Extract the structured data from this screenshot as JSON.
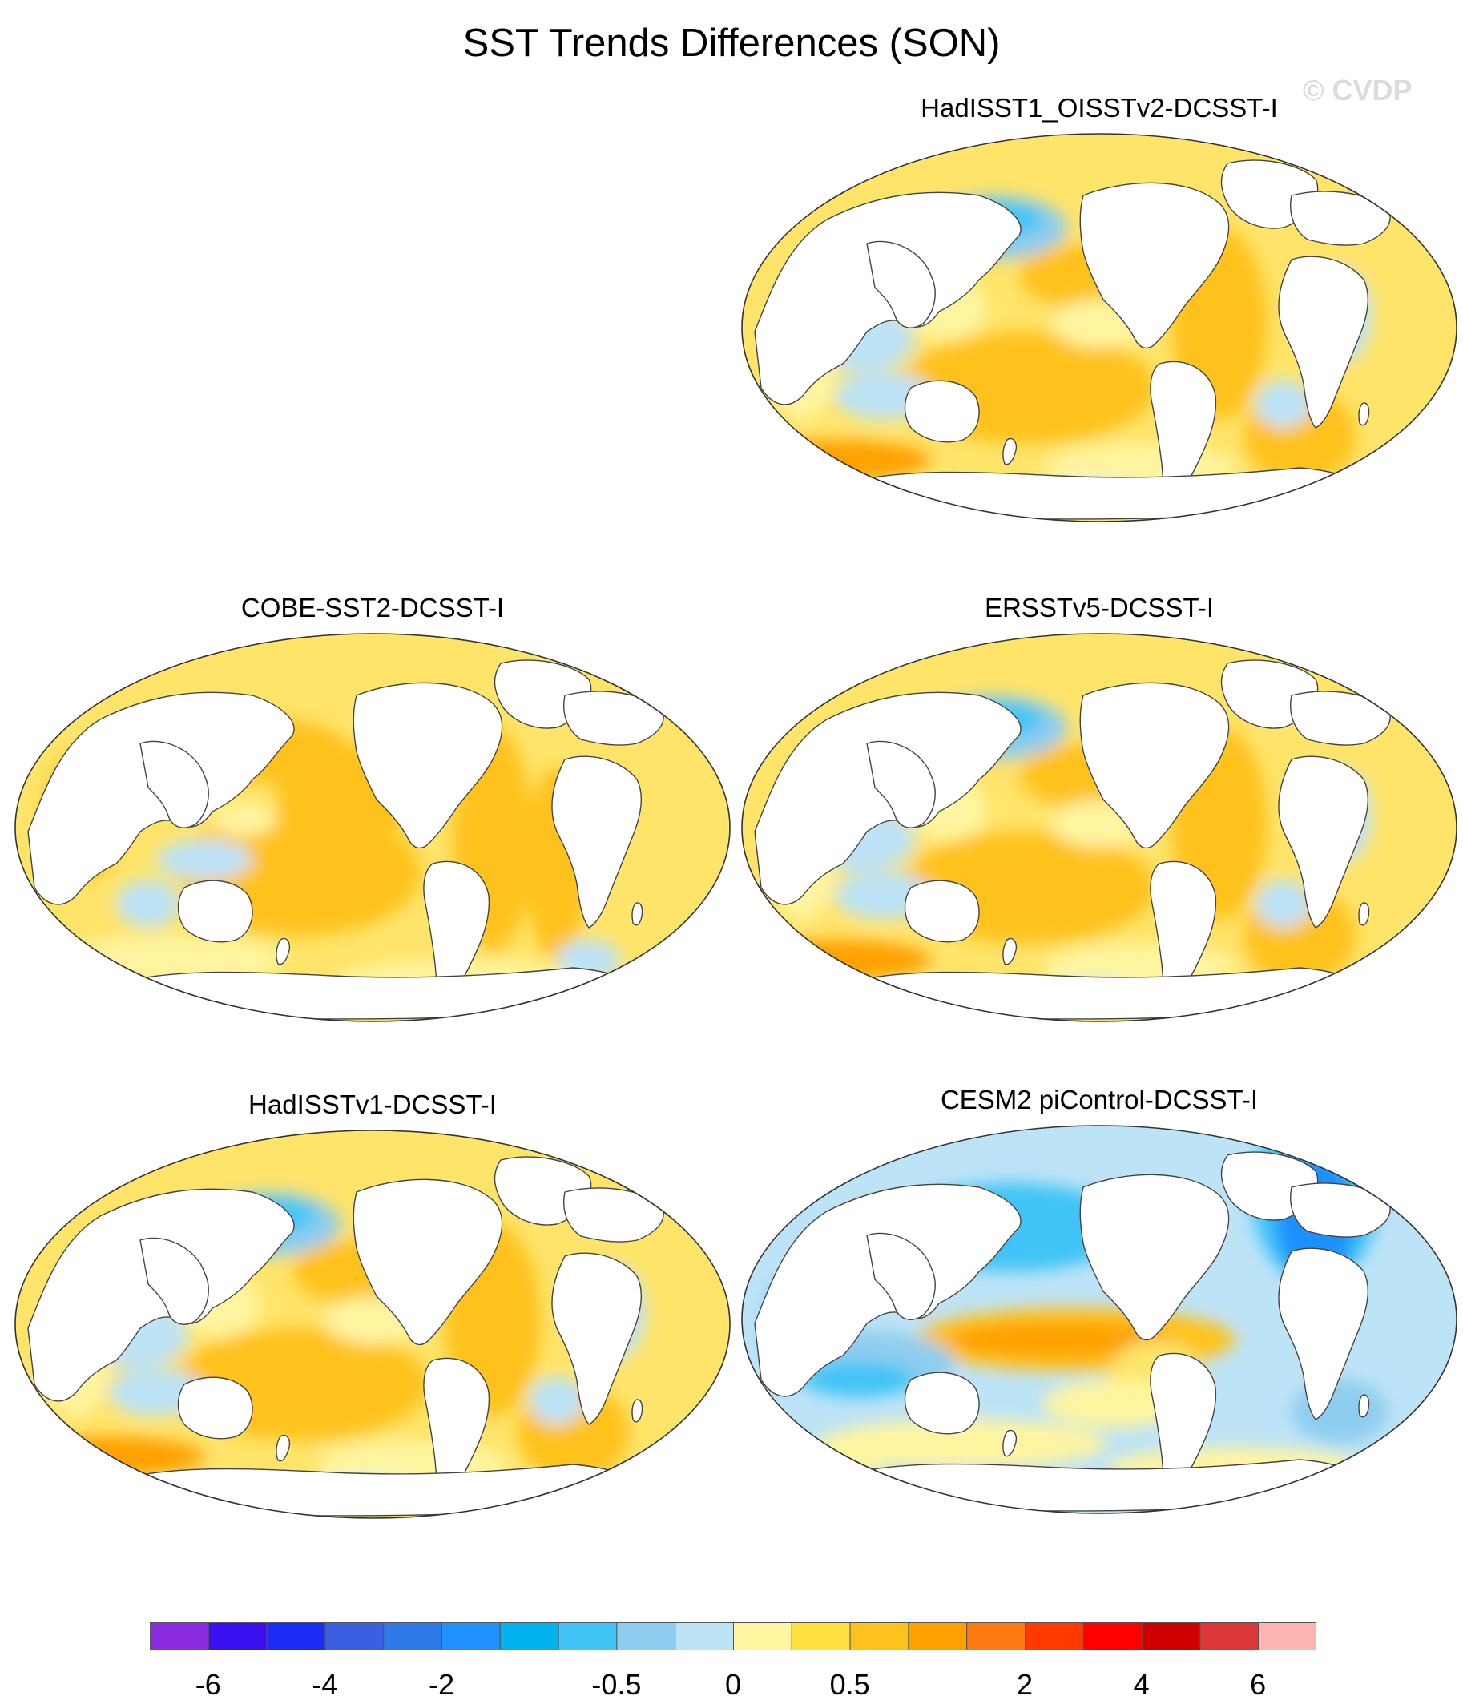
{
  "title": "SST Trends Differences (SON)",
  "watermark": "© CVDP",
  "panels": [
    {
      "id": "p1",
      "title": "HadISST1_OISSTv2-DCSST-I",
      "scheme": "warm_mixed"
    },
    {
      "id": "p2",
      "title": "COBE-SST2-DCSST-I",
      "scheme": "warm"
    },
    {
      "id": "p3",
      "title": "ERSSTv5-DCSST-I",
      "scheme": "warm_mixed"
    },
    {
      "id": "p4",
      "title": "HadISSTv1-DCSST-I",
      "scheme": "warm_mixed"
    },
    {
      "id": "p5",
      "title": "CESM2 piControl-DCSST-I",
      "scheme": "cool"
    }
  ],
  "colorbar": {
    "colors": [
      "#8a2be2",
      "#3b10f0",
      "#1a2cf5",
      "#3a5fe0",
      "#2e7ae8",
      "#1e90ff",
      "#00b2ee",
      "#40c4f6",
      "#8ecdef",
      "#bde3f7",
      "#fff5a0",
      "#ffe040",
      "#ffc21c",
      "#ffa000",
      "#ff7a10",
      "#ff3a00",
      "#ff0000",
      "#d00000",
      "#dd3838",
      "#ffb4b4"
    ],
    "labels": [
      "-6",
      "-4",
      "-2",
      "-0.5",
      "0",
      "0.5",
      "2",
      "4",
      "6"
    ],
    "label_after_index": [
      0,
      2,
      4,
      7,
      9,
      11,
      14,
      16,
      18
    ]
  },
  "map_colors": {
    "land": "#ffffff",
    "coast": "#444444",
    "warm_bg": "#ffe46a",
    "warm_mid": "#ffc21c",
    "warm_strong": "#ffa000",
    "pale_yellow": "#fff5a0",
    "cool_light": "#bde3f7",
    "cool_mid": "#8ecdef",
    "cool_strong": "#40c4f6",
    "cool_deep": "#1e90ff"
  }
}
